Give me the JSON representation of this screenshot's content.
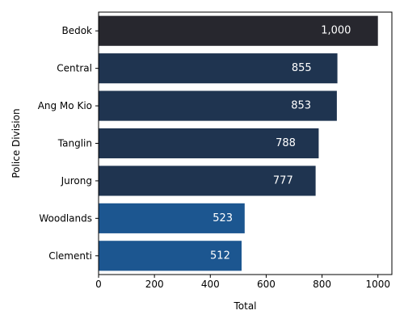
{
  "chart_data": {
    "type": "bar",
    "orientation": "horizontal",
    "categories": [
      "Bedok",
      "Central",
      "Ang Mo Kio",
      "Tanglin",
      "Jurong",
      "Woodlands",
      "Clementi"
    ],
    "values": [
      1000,
      855,
      853,
      788,
      777,
      523,
      512
    ],
    "value_labels": [
      "1,000",
      "855",
      "853",
      "788",
      "777",
      "523",
      "512"
    ],
    "bar_colors": [
      "#27272e",
      "#1f3450",
      "#1f3450",
      "#1f3450",
      "#1f3450",
      "#1c5690",
      "#1c5690"
    ],
    "title": "",
    "xlabel": "Total",
    "ylabel": "Police Division",
    "xlim": [
      0,
      1050
    ],
    "xticks": [
      0,
      200,
      400,
      600,
      800,
      1000
    ],
    "grid": false,
    "legend": "none"
  }
}
